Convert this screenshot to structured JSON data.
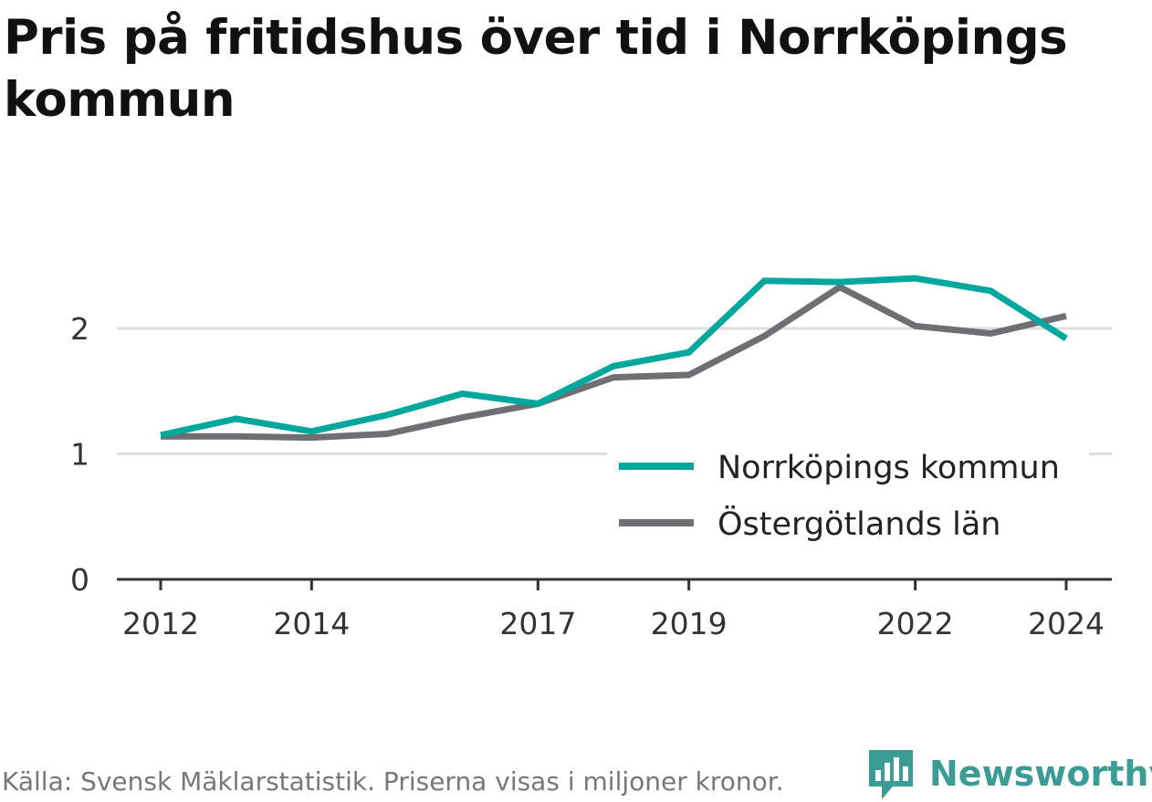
{
  "title": "Pris på fritidshus över tid i Norrköpings kommun",
  "source": "Källa: Svensk Mäklarstatistik. Priserna visas i miljoner kronor.",
  "logo_text": "Newsworthy",
  "chart_data": {
    "type": "line",
    "title": "Pris på fritidshus över tid i Norrköpings kommun",
    "xlabel": "",
    "ylabel": "",
    "x": [
      2012,
      2013,
      2014,
      2015,
      2016,
      2017,
      2018,
      2019,
      2020,
      2021,
      2022,
      2023,
      2024
    ],
    "xticks": [
      2012,
      2014,
      2017,
      2019,
      2022,
      2024
    ],
    "yticks": [
      0,
      1,
      2
    ],
    "ylim": [
      0,
      2.5
    ],
    "grid": "horizontal",
    "legend_position": "bottom-right",
    "series": [
      {
        "name": "Norrköpings kommun",
        "color": "#00a79d",
        "values": [
          1.15,
          1.28,
          1.18,
          1.31,
          1.48,
          1.4,
          1.7,
          1.81,
          2.38,
          2.37,
          2.4,
          2.3,
          1.92
        ]
      },
      {
        "name": "Östergötlands län",
        "color": "#6e6e73",
        "values": [
          1.14,
          1.14,
          1.13,
          1.16,
          1.29,
          1.4,
          1.61,
          1.63,
          1.94,
          2.33,
          2.02,
          1.96,
          2.1
        ]
      }
    ]
  }
}
